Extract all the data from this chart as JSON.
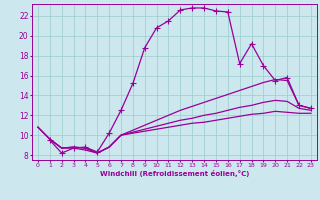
{
  "xlabel": "Windchill (Refroidissement éolien,°C)",
  "ylabel": "",
  "bg_color": "#cce8ee",
  "line_color": "#990099",
  "grid_color": "#99cccc",
  "xlim": [
    -0.5,
    23.5
  ],
  "ylim": [
    7.5,
    23.2
  ],
  "xticks": [
    0,
    1,
    2,
    3,
    4,
    5,
    6,
    7,
    8,
    9,
    10,
    11,
    12,
    13,
    14,
    15,
    16,
    17,
    18,
    19,
    20,
    21,
    22,
    23
  ],
  "yticks": [
    8,
    10,
    12,
    14,
    16,
    18,
    20,
    22
  ],
  "lines": [
    {
      "x": [
        1,
        2,
        3,
        4,
        5,
        6,
        7,
        8,
        9,
        10,
        11,
        12,
        13,
        14,
        15,
        16,
        17,
        18,
        19,
        20,
        21,
        22,
        23
      ],
      "y": [
        9.5,
        8.2,
        8.7,
        8.8,
        8.3,
        10.2,
        12.5,
        15.2,
        18.8,
        20.8,
        21.5,
        22.6,
        22.8,
        22.8,
        22.5,
        22.4,
        17.2,
        19.2,
        17.0,
        15.5,
        15.8,
        13.0,
        12.7
      ],
      "marker": "+",
      "markersize": 4,
      "linewidth": 0.9
    },
    {
      "x": [
        0,
        1,
        2,
        3,
        4,
        5,
        6,
        7,
        8,
        9,
        10,
        11,
        12,
        13,
        14,
        15,
        16,
        17,
        18,
        19,
        20,
        21,
        22,
        23
      ],
      "y": [
        10.8,
        9.6,
        8.7,
        8.8,
        8.7,
        8.2,
        8.8,
        10.0,
        10.5,
        11.0,
        11.5,
        12.0,
        12.5,
        12.9,
        13.3,
        13.7,
        14.1,
        14.5,
        14.9,
        15.3,
        15.6,
        15.5,
        13.0,
        12.7
      ],
      "marker": null,
      "markersize": 0,
      "linewidth": 0.9
    },
    {
      "x": [
        0,
        1,
        2,
        3,
        4,
        5,
        6,
        7,
        8,
        9,
        10,
        11,
        12,
        13,
        14,
        15,
        16,
        17,
        18,
        19,
        20,
        21,
        22,
        23
      ],
      "y": [
        10.8,
        9.6,
        8.7,
        8.8,
        8.7,
        8.2,
        8.8,
        10.0,
        10.3,
        10.6,
        10.9,
        11.2,
        11.5,
        11.7,
        12.0,
        12.2,
        12.5,
        12.8,
        13.0,
        13.3,
        13.5,
        13.4,
        12.7,
        12.5
      ],
      "marker": null,
      "markersize": 0,
      "linewidth": 0.9
    },
    {
      "x": [
        0,
        1,
        2,
        3,
        4,
        5,
        6,
        7,
        8,
        9,
        10,
        11,
        12,
        13,
        14,
        15,
        16,
        17,
        18,
        19,
        20,
        21,
        22,
        23
      ],
      "y": [
        10.8,
        9.6,
        8.7,
        8.7,
        8.5,
        8.2,
        8.8,
        10.0,
        10.2,
        10.4,
        10.6,
        10.8,
        11.0,
        11.2,
        11.3,
        11.5,
        11.7,
        11.9,
        12.1,
        12.2,
        12.4,
        12.3,
        12.2,
        12.2
      ],
      "marker": null,
      "markersize": 0,
      "linewidth": 0.9
    }
  ]
}
